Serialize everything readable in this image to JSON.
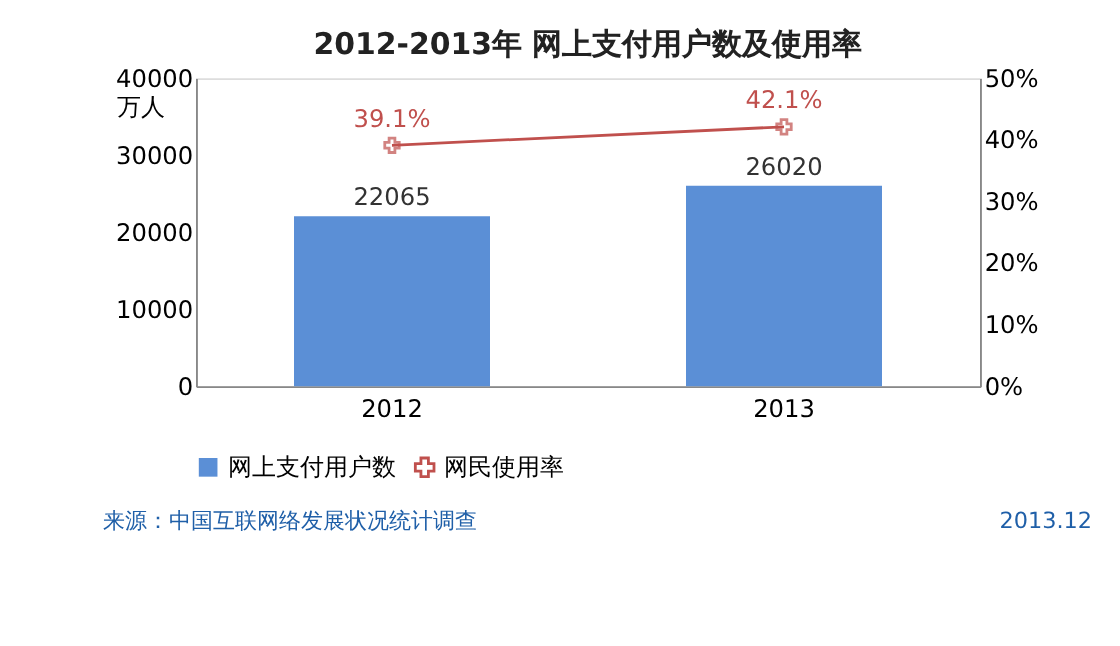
{
  "chart_data": {
    "type": "bar",
    "title": "2012-2013年 网上支付用户数及使用率",
    "categories": [
      "2012",
      "2013"
    ],
    "series": [
      {
        "name": "网上支付用户数",
        "color": "#5b8fd6",
        "values": [
          22065,
          26020
        ],
        "value_labels": [
          "22065",
          "26020"
        ]
      },
      {
        "name": "网民使用率",
        "type": "line",
        "axis": "y2",
        "color": "#c0504d",
        "values": [
          39.1,
          42.1
        ],
        "value_labels": [
          "39.1%",
          "42.1%"
        ],
        "marker": "cross"
      }
    ],
    "ylabel": "万人",
    "ylim": [
      0,
      40000
    ],
    "yticks": [
      0,
      10000,
      20000,
      30000,
      40000
    ],
    "y2lim": [
      0,
      50
    ],
    "y2ticks": [
      {
        "value": 0,
        "label": "0%"
      },
      {
        "value": 10,
        "label": "10%"
      },
      {
        "value": 20,
        "label": "20%"
      },
      {
        "value": 30,
        "label": "30%"
      },
      {
        "value": 40,
        "label": "40%"
      },
      {
        "value": 50,
        "label": "50%"
      }
    ],
    "legend": "bottom",
    "grid": false,
    "annotations": [
      "来源：中国互联网络发展状况统计调查",
      "2013.12"
    ]
  }
}
